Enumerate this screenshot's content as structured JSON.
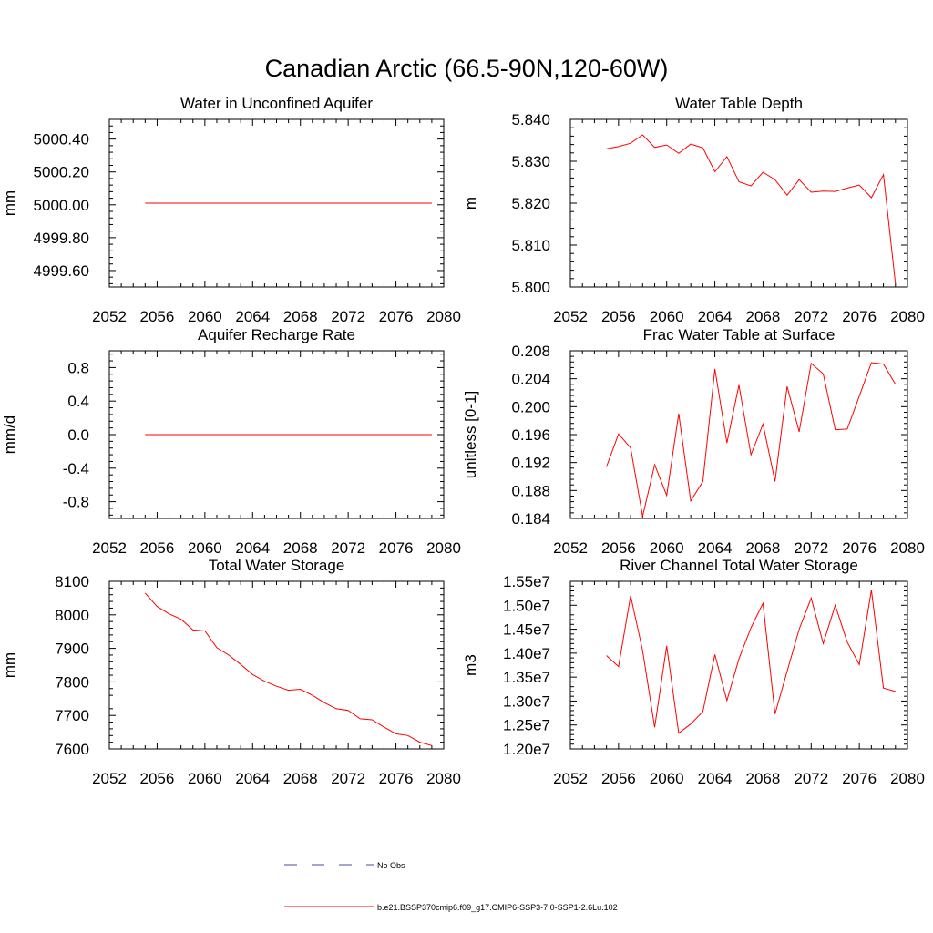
{
  "main_title": "Canadian Arctic (66.5-90N,120-60W)",
  "legend": {
    "obs_label": "No Obs",
    "model_label": "b.e21.BSSP370cmip6.f09_g17.CMIP6-SSP3-7.0-SSP1-2.6Lu.102",
    "obs_color": "#4a4aa8",
    "model_color": "#ff0000"
  },
  "chart_data": [
    {
      "type": "line",
      "title": "Water in Unconfined Aquifer",
      "ylabel": "mm",
      "xlim": [
        2052,
        2080
      ],
      "ylim": [
        4999.5,
        5000.52
      ],
      "xticks": [
        2052,
        2056,
        2060,
        2064,
        2068,
        2072,
        2076,
        2080
      ],
      "yticks": [
        4999.6,
        4999.8,
        5000.0,
        5000.2,
        5000.4
      ],
      "ytick_labels": [
        "4999.60",
        "4999.80",
        "5000.00",
        "5000.20",
        "5000.40"
      ],
      "series": [
        {
          "x": [
            2055,
            2079
          ],
          "y": [
            5000.01,
            5000.01
          ]
        }
      ]
    },
    {
      "type": "line",
      "title": "Water Table Depth",
      "ylabel": "m",
      "xlim": [
        2052,
        2080
      ],
      "ylim": [
        5.8,
        5.84
      ],
      "xticks": [
        2052,
        2056,
        2060,
        2064,
        2068,
        2072,
        2076,
        2080
      ],
      "yticks": [
        5.8,
        5.81,
        5.82,
        5.83,
        5.84
      ],
      "ytick_labels": [
        "5.800",
        "5.810",
        "5.820",
        "5.830",
        "5.840"
      ],
      "series": [
        {
          "x": [
            2055,
            2056,
            2057,
            2058,
            2059,
            2060,
            2061,
            2062,
            2063,
            2064,
            2065,
            2066,
            2067,
            2068,
            2069,
            2070,
            2071,
            2072,
            2073,
            2074,
            2075,
            2076,
            2077,
            2078,
            2079
          ],
          "y": [
            5.833,
            5.8335,
            5.8343,
            5.8363,
            5.8333,
            5.8339,
            5.8319,
            5.8341,
            5.8332,
            5.8275,
            5.8311,
            5.8251,
            5.8241,
            5.8274,
            5.8256,
            5.8219,
            5.8256,
            5.8226,
            5.8229,
            5.8228,
            5.8236,
            5.8243,
            5.8213,
            5.8268,
            5.8008
          ]
        }
      ]
    },
    {
      "type": "line",
      "title": "Aquifer Recharge Rate",
      "ylabel": "mm/d",
      "xlim": [
        2052,
        2080
      ],
      "ylim": [
        -1.0,
        1.0
      ],
      "xticks": [
        2052,
        2056,
        2060,
        2064,
        2068,
        2072,
        2076,
        2080
      ],
      "yticks": [
        -0.8,
        -0.4,
        0.0,
        0.4,
        0.8
      ],
      "ytick_labels": [
        "-0.8",
        "-0.4",
        "0.0",
        "0.4",
        "0.8"
      ],
      "series": [
        {
          "x": [
            2055,
            2079
          ],
          "y": [
            0.0,
            0.0
          ]
        }
      ]
    },
    {
      "type": "line",
      "title": "Frac Water Table at Surface",
      "ylabel": "unitless [0-1]",
      "xlim": [
        2052,
        2080
      ],
      "ylim": [
        0.184,
        0.208
      ],
      "xticks": [
        2052,
        2056,
        2060,
        2064,
        2068,
        2072,
        2076,
        2080
      ],
      "yticks": [
        0.184,
        0.188,
        0.192,
        0.196,
        0.2,
        0.204,
        0.208
      ],
      "ytick_labels": [
        "0.184",
        "0.188",
        "0.192",
        "0.196",
        "0.200",
        "0.204",
        "0.208"
      ],
      "series": [
        {
          "x": [
            2055,
            2056,
            2057,
            2058,
            2059,
            2060,
            2061,
            2062,
            2063,
            2064,
            2065,
            2066,
            2067,
            2068,
            2069,
            2070,
            2071,
            2072,
            2073,
            2074,
            2075,
            2076,
            2077,
            2078,
            2079
          ],
          "y": [
            0.1914,
            0.1961,
            0.1941,
            0.1843,
            0.1917,
            0.1873,
            0.199,
            0.1865,
            0.1893,
            0.2054,
            0.1948,
            0.2031,
            0.1931,
            0.1975,
            0.1893,
            0.2029,
            0.1964,
            0.2062,
            0.2047,
            0.1967,
            0.1968,
            0.2015,
            0.2063,
            0.2061,
            0.2032
          ]
        }
      ]
    },
    {
      "type": "line",
      "title": "Total Water Storage",
      "ylabel": "mm",
      "xlim": [
        2052,
        2080
      ],
      "ylim": [
        7600,
        8100
      ],
      "xticks": [
        2052,
        2056,
        2060,
        2064,
        2068,
        2072,
        2076,
        2080
      ],
      "yticks": [
        7600,
        7700,
        7800,
        7900,
        8000,
        8100
      ],
      "ytick_labels": [
        "7600",
        "7700",
        "7800",
        "7900",
        "8000",
        "8100"
      ],
      "series": [
        {
          "x": [
            2055,
            2056,
            2057,
            2058,
            2059,
            2060,
            2061,
            2062,
            2063,
            2064,
            2065,
            2066,
            2067,
            2068,
            2069,
            2070,
            2071,
            2072,
            2073,
            2074,
            2075,
            2076,
            2077,
            2078,
            2079
          ],
          "y": [
            8065,
            8025,
            8003,
            7987,
            7955,
            7952,
            7902,
            7880,
            7852,
            7822,
            7802,
            7787,
            7775,
            7778,
            7760,
            7738,
            7720,
            7715,
            7690,
            7687,
            7665,
            7645,
            7640,
            7620,
            7610
          ]
        }
      ]
    },
    {
      "type": "line",
      "title": "River Channel Total Water Storage",
      "ylabel": "m3",
      "xlim": [
        2052,
        2080
      ],
      "ylim": [
        12000000,
        15500000
      ],
      "xticks": [
        2052,
        2056,
        2060,
        2064,
        2068,
        2072,
        2076,
        2080
      ],
      "yticks": [
        12000000,
        12500000,
        13000000,
        13500000,
        14000000,
        14500000,
        15000000,
        15500000
      ],
      "ytick_labels": [
        "1.20e7",
        "1.25e7",
        "1.30e7",
        "1.35e7",
        "1.40e7",
        "1.45e7",
        "1.50e7",
        "1.55e7"
      ],
      "series": [
        {
          "x": [
            2055,
            2056,
            2057,
            2058,
            2059,
            2060,
            2061,
            2062,
            2063,
            2064,
            2065,
            2066,
            2067,
            2068,
            2069,
            2070,
            2071,
            2072,
            2073,
            2074,
            2075,
            2076,
            2077,
            2078,
            2079
          ],
          "y": [
            13950000,
            13720000,
            15200000,
            14050000,
            12450000,
            14150000,
            12330000,
            12520000,
            12780000,
            13970000,
            13010000,
            13880000,
            14530000,
            15040000,
            12730000,
            13620000,
            14500000,
            15150000,
            14200000,
            15000000,
            14230000,
            13760000,
            15320000,
            13270000,
            13200000
          ]
        }
      ]
    }
  ]
}
